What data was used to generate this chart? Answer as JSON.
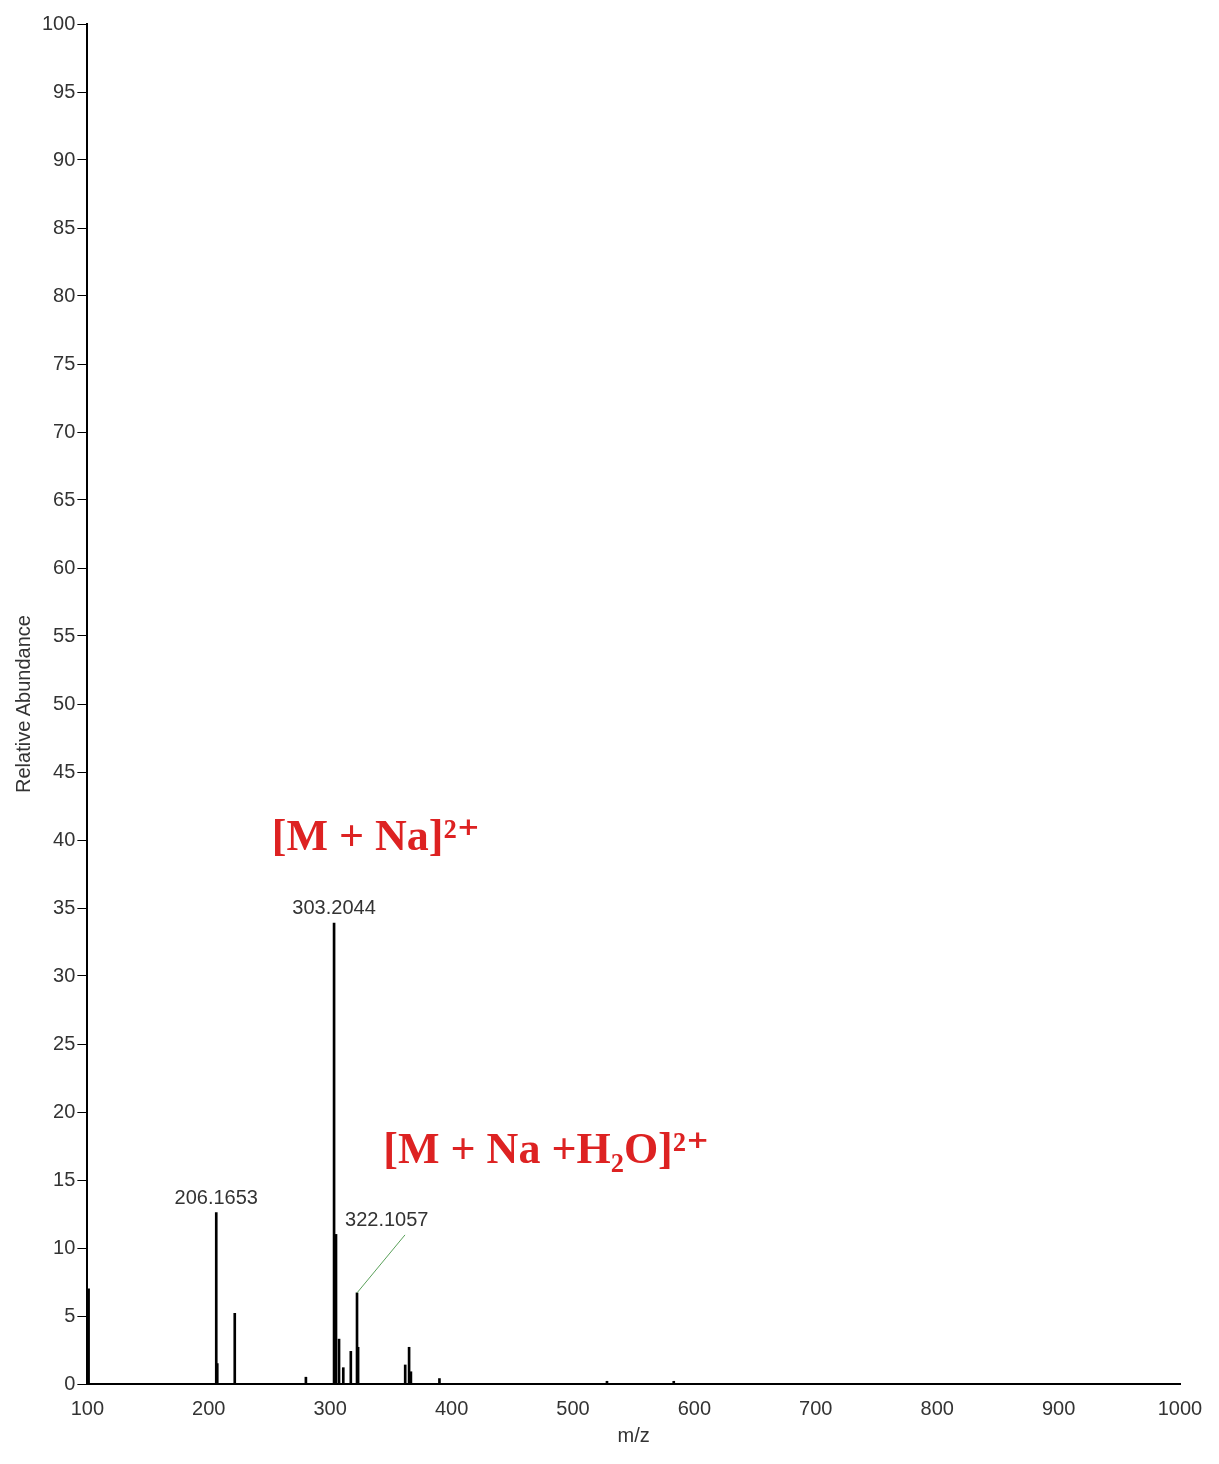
{
  "chart_data": {
    "type": "bar",
    "xlabel": "m/z",
    "ylabel": "Relative Abundance",
    "x": [
      101,
      206.1653,
      207,
      221.4,
      280,
      303.2044,
      304.8,
      307.3,
      310.8,
      317,
      322.1057,
      323,
      361.8,
      365,
      366.5,
      390,
      528,
      583
    ],
    "values": [
      7.0,
      12.6,
      1.5,
      5.2,
      0.5,
      33.9,
      11.0,
      3.3,
      1.2,
      2.4,
      6.7,
      2.7,
      1.4,
      2.7,
      0.9,
      0.4,
      0.2,
      0.2
    ],
    "color": "#000000",
    "xlim": [
      100,
      1000
    ],
    "xticks": [
      100,
      200,
      300,
      400,
      500,
      600,
      700,
      800,
      900,
      1000
    ],
    "ylim": [
      0,
      100
    ],
    "yticks": [
      0,
      5,
      10,
      15,
      20,
      25,
      30,
      35,
      40,
      45,
      50,
      55,
      60,
      65,
      70,
      75,
      80,
      85,
      90,
      95,
      100
    ],
    "grid": false,
    "annotations": [
      {
        "text": "206.1653",
        "x": 206.1653,
        "y": 12.6
      },
      {
        "text": "303.2044",
        "x": 303.2044,
        "y": 33.9
      },
      {
        "text": "322.1057",
        "x": 322.1057,
        "y": 6.7
      },
      "[M + Na]²⁺",
      "[M + Na +H₂O]²⁺"
    ]
  }
}
